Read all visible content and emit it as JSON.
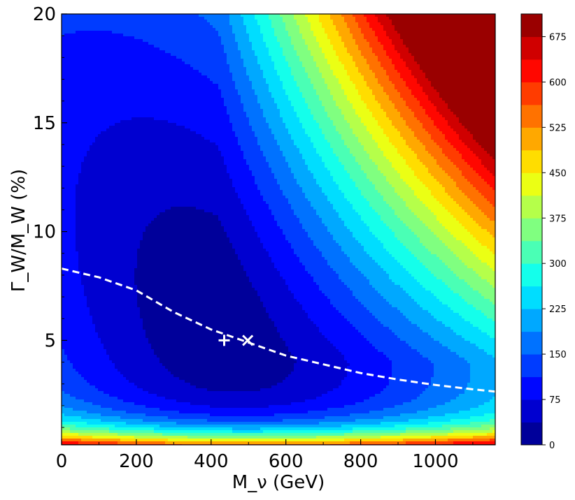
{
  "chart_data": {
    "type": "heatmap",
    "subtype": "filled-contour",
    "colormap": "jet",
    "title": "",
    "xlabel": "M_ν (GeV)",
    "ylabel": "Γ_W/M_W (%)",
    "xlim": [
      0,
      1160
    ],
    "ylim": [
      0.2,
      20
    ],
    "x_ticks": [
      "0",
      "200",
      "400",
      "600",
      "800",
      "1000"
    ],
    "x_tick_values": [
      0,
      200,
      400,
      600,
      800,
      1000
    ],
    "y_ticks": [
      "5",
      "10",
      "15",
      "20"
    ],
    "y_tick_values": [
      5,
      10,
      15,
      20
    ],
    "colorbar": {
      "min": 0,
      "max": 712.5,
      "levels": 19,
      "step": 37.5,
      "ticks": [
        "0",
        "75",
        "150",
        "225",
        "300",
        "375",
        "450",
        "525",
        "600",
        "675"
      ],
      "tick_values": [
        0,
        75,
        150,
        225,
        300,
        375,
        450,
        525,
        600,
        675
      ]
    },
    "minimum_estimate": {
      "x": 420,
      "y": 5.6
    },
    "dashed_curve": {
      "x": [
        0,
        100,
        200,
        300,
        400,
        500,
        600,
        700,
        800,
        900,
        1000,
        1100,
        1160
      ],
      "y": [
        8.3,
        7.9,
        7.3,
        6.3,
        5.5,
        4.9,
        4.3,
        3.9,
        3.5,
        3.2,
        2.95,
        2.75,
        2.65
      ]
    },
    "markers": [
      {
        "name": "plus",
        "symbol": "+",
        "x": 435,
        "y": 5.0
      },
      {
        "name": "cross",
        "symbol": "×",
        "x": 498,
        "y": 5.0
      }
    ]
  }
}
